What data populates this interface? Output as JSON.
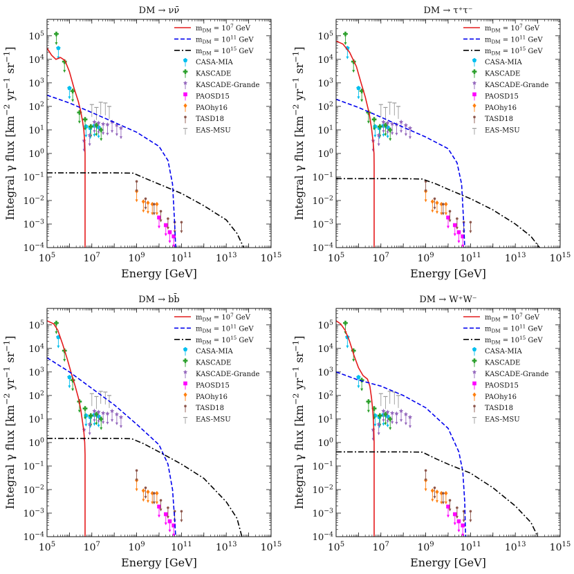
{
  "chart_data": {
    "type": "line",
    "x_axis": {
      "label": "Energy [GeV]",
      "scale": "log",
      "range": [
        100000,
        1000000000000000.0
      ],
      "ticks": [
        {
          "value": 100000.0,
          "label": "10^5"
        },
        {
          "value": 10000000.0,
          "label": "10^7"
        },
        {
          "value": 1000000000.0,
          "label": "10^9"
        },
        {
          "value": 100000000000.0,
          "label": "10^11"
        },
        {
          "value": 10000000000000.0,
          "label": "10^13"
        },
        {
          "value": 1000000000000000.0,
          "label": "10^15"
        }
      ]
    },
    "y_axis": {
      "label": "Integral γ flux [km^-2 yr^-1 sr^-1]",
      "scale": "log",
      "range": [
        0.0001,
        500000
      ],
      "ticks": [
        {
          "value": 0.0001,
          "label": "10^-4"
        },
        {
          "value": 0.001,
          "label": "10^-3"
        },
        {
          "value": 0.01,
          "label": "10^-2"
        },
        {
          "value": 0.1,
          "label": "10^-1"
        },
        {
          "value": 1,
          "label": "10^0"
        },
        {
          "value": 10,
          "label": "10^1"
        },
        {
          "value": 100,
          "label": "10^2"
        },
        {
          "value": 1000,
          "label": "10^3"
        },
        {
          "value": 10000.0,
          "label": "10^4"
        },
        {
          "value": 100000.0,
          "label": "10^5"
        }
      ]
    },
    "legend": {
      "placement": "top-right",
      "lines": [
        {
          "key": "m7",
          "label": "m_DM = 10^7 GeV",
          "color": "#e41a1c",
          "style": "solid"
        },
        {
          "key": "m11",
          "label": "m_DM = 10^11 GeV",
          "color": "#0000ee",
          "style": "dashed"
        },
        {
          "key": "m15",
          "label": "m_DM = 10^15 GeV",
          "color": "#000000",
          "style": "dashdot"
        }
      ],
      "experiments": [
        {
          "key": "casa",
          "label": "CASA-MIA",
          "color": "#00bfef",
          "marker": "pentagon"
        },
        {
          "key": "kascade",
          "label": "KASCADE",
          "color": "#2ca02c",
          "marker": "plus"
        },
        {
          "key": "grande",
          "label": "KASCADE-Grande",
          "color": "#9467bd",
          "marker": "star"
        },
        {
          "key": "paosd",
          "label": "PAOSD15",
          "color": "#ff00ff",
          "marker": "square"
        },
        {
          "key": "paohy",
          "label": "PAOhy16",
          "color": "#ff7f0e",
          "marker": "diamond"
        },
        {
          "key": "tasd",
          "label": "TASD18",
          "color": "#8c564b",
          "marker": "dot"
        },
        {
          "key": "easmsu",
          "label": "EAS-MSU",
          "color": "#999999",
          "marker": "bar"
        }
      ]
    },
    "upper_limits": {
      "casa": [
        [
          320000.0,
          30000.0
        ],
        [
          1000000.0,
          600.0
        ],
        [
          5500000.0,
          14
        ],
        [
          8500000.0,
          12
        ],
        [
          13000000.0,
          15
        ],
        [
          20000000.0,
          13
        ]
      ],
      "kascade": [
        [
          260000.0,
          120000.0
        ],
        [
          600000.0,
          8000.0
        ],
        [
          1400000.0,
          450.0
        ],
        [
          2800000.0,
          55
        ],
        [
          5000000.0,
          28
        ],
        [
          9000000.0,
          14
        ],
        [
          16000000.0,
          16
        ],
        [
          26000000.0,
          10
        ]
      ],
      "grande": [
        [
          4500000.0,
          3.5
        ],
        [
          8000000.0,
          6
        ],
        [
          13000000.0,
          22
        ],
        [
          20000000.0,
          20
        ],
        [
          32000000.0,
          18
        ],
        [
          50000000.0,
          17
        ],
        [
          80000000.0,
          22
        ],
        [
          130000000.0,
          16
        ],
        [
          200000000.0,
          12
        ]
      ],
      "paosd": [
        [
          10000000000.0,
          0.0019
        ],
        [
          20000000000.0,
          0.0009
        ],
        [
          30000000000.0,
          0.00045
        ],
        [
          45000000000.0,
          0.0003
        ]
      ],
      "paohy": [
        [
          1000000000.0,
          0.025
        ],
        [
          2000000000.0,
          0.009
        ],
        [
          3200000000.0,
          0.008
        ],
        [
          5000000000.0,
          0.007
        ],
        [
          8000000000.0,
          0.007
        ]
      ],
      "tasd": [
        [
          1000000000.0,
          0.065
        ],
        [
          2500000000.0,
          0.012
        ],
        [
          6000000000.0,
          0.007
        ],
        [
          12000000000.0,
          0.0035
        ],
        [
          25000000000.0,
          0.0017
        ],
        [
          50000000000.0,
          0.0012
        ],
        [
          100000000000.0,
          0.0012
        ]
      ],
      "easmsu": [
        [
          10000000.0,
          120
        ],
        [
          16000000.0,
          90
        ],
        [
          25000000.0,
          150
        ],
        [
          40000000.0,
          140
        ],
        [
          60000000.0,
          100
        ]
      ]
    },
    "panels": [
      {
        "title": "DM → νν̄",
        "series": [
          {
            "key": "m7",
            "x": [
              100000.0,
              160000.0,
              250000.0,
              400000.0,
              630000.0,
              1000000.0,
              1600000.0,
              2500000.0,
              3200000.0,
              3800000.0,
              4400000.0,
              4800000.0,
              5000000.0,
              5000000.0
            ],
            "y": [
              30000.0,
              15000.0,
              10000.0,
              12000.0,
              9000.0,
              3000.0,
              600,
              160,
              60,
              25,
              10,
              3,
              1,
              0.0001
            ]
          },
          {
            "key": "m11",
            "x": [
              100000.0,
              1000000.0,
              10000000.0,
              100000000.0,
              1000000000.0,
              10000000000.0,
              25000000000.0,
              40000000000.0,
              50000000000.0,
              55000000000.0
            ],
            "y": [
              300,
              140,
              55,
              21,
              8,
              2.0,
              0.5,
              0.05,
              0.001,
              0.0001
            ]
          },
          {
            "key": "m15",
            "x": [
              100000.0,
              1000000.0,
              10000000.0,
              100000000.0,
              700000000.0,
              3000000000.0,
              10000000000.0,
              100000000000.0,
              1000000000000.0,
              10000000000000.0,
              30000000000000.0,
              60000000000000.0
            ],
            "y": [
              0.15,
              0.15,
              0.15,
              0.15,
              0.145,
              0.08,
              0.05,
              0.02,
              0.006,
              0.0015,
              0.0004,
              0.0001
            ]
          }
        ]
      },
      {
        "title": "DM → τ⁺τ⁻",
        "series": [
          {
            "key": "m7",
            "x": [
              100000.0,
              200000.0,
              400000.0,
              800000.0,
              1300000.0,
              2000000.0,
              3000000.0,
              3800000.0,
              4500000.0,
              4900000.0,
              5000000.0,
              5000000.0
            ],
            "y": [
              60000.0,
              45000.0,
              20000.0,
              5000.0,
              1000.0,
              250,
              50,
              12,
              3,
              1,
              0.3,
              0.0001
            ]
          },
          {
            "key": "m11",
            "x": [
              100000.0,
              1000000.0,
              10000000.0,
              100000000.0,
              1000000000.0,
              10000000000.0,
              25000000000.0,
              40000000000.0,
              50000000000.0,
              55000000000.0
            ],
            "y": [
              200,
              90,
              35,
              13,
              5,
              1.6,
              0.4,
              0.05,
              0.001,
              0.0001
            ]
          },
          {
            "key": "m15",
            "x": [
              100000.0,
              1000000.0,
              10000000.0,
              100000000.0,
              700000000.0,
              3000000000.0,
              10000000000.0,
              100000000000.0,
              1000000000000.0,
              10000000000000.0,
              50000000000000.0,
              120000000000000.0
            ],
            "y": [
              0.085,
              0.085,
              0.085,
              0.085,
              0.082,
              0.05,
              0.03,
              0.012,
              0.004,
              0.001,
              0.0003,
              0.0001
            ]
          }
        ]
      },
      {
        "title": "DM → bb̄",
        "series": [
          {
            "key": "m7",
            "x": [
              100000.0,
              200000.0,
              300000.0,
              500000.0,
              800000.0,
              1200000.0,
              1800000.0,
              2500000.0,
              3200000.0,
              3800000.0,
              4400000.0,
              4800000.0,
              5000000.0,
              5000000.0
            ],
            "y": [
              150000.0,
              110000.0,
              60000.0,
              15000.0,
              3500.0,
              900,
              250,
              80,
              25,
              8,
              3,
              1,
              0.3,
              0.0001
            ]
          },
          {
            "key": "m11",
            "x": [
              100000.0,
              1000000.0,
              10000000.0,
              100000000.0,
              1000000000.0,
              10000000000.0,
              25000000000.0,
              40000000000.0,
              50000000000.0,
              55000000000.0
            ],
            "y": [
              4000.0,
              1000.0,
              200,
              40,
              6,
              0.8,
              0.12,
              0.01,
              0.0005,
              0.0001
            ]
          },
          {
            "key": "m15",
            "x": [
              100000.0,
              1000000.0,
              10000000.0,
              100000000.0,
              600000000.0,
              2000000000.0,
              10000000000.0,
              100000000000.0,
              1000000000000.0,
              10000000000000.0,
              30000000000000.0,
              50000000000000.0
            ],
            "y": [
              1.5,
              1.5,
              1.5,
              1.5,
              1.45,
              0.9,
              0.4,
              0.12,
              0.03,
              0.003,
              0.0006,
              0.0001
            ]
          }
        ]
      },
      {
        "title": "DM → W⁺W⁻",
        "series": [
          {
            "key": "m7",
            "x": [
              100000.0,
              160000.0,
              250000.0,
              400000.0,
              630000.0,
              1000000.0,
              1600000.0,
              2500000.0,
              3200000.0,
              3800000.0,
              4400000.0,
              4800000.0,
              5000000.0,
              5000000.0
            ],
            "y": [
              150000.0,
              110000.0,
              60000.0,
              20000.0,
              5000.0,
              1500.0,
              700,
              500,
              250,
              80,
              20,
              4,
              1,
              0.0001
            ]
          },
          {
            "key": "m11",
            "x": [
              100000.0,
              1000000.0,
              10000000.0,
              100000000.0,
              1000000000.0,
              10000000000.0,
              30000000000.0,
              45000000000.0,
              55000000000.0,
              60000000000.0
            ],
            "y": [
              1000.0,
              450,
              250,
              100,
              30,
              4,
              0.4,
              0.06,
              0.003,
              0.0001
            ]
          },
          {
            "key": "m15",
            "x": [
              100000.0,
              1000000.0,
              10000000.0,
              100000000.0,
              700000000.0,
              3000000000.0,
              10000000000.0,
              100000000000.0,
              1000000000000.0,
              10000000000000.0,
              50000000000000.0,
              100000000000000.0
            ],
            "y": [
              0.4,
              0.4,
              0.4,
              0.4,
              0.39,
              0.2,
              0.12,
              0.05,
              0.012,
              0.002,
              0.0004,
              0.0001
            ]
          }
        ]
      }
    ]
  }
}
